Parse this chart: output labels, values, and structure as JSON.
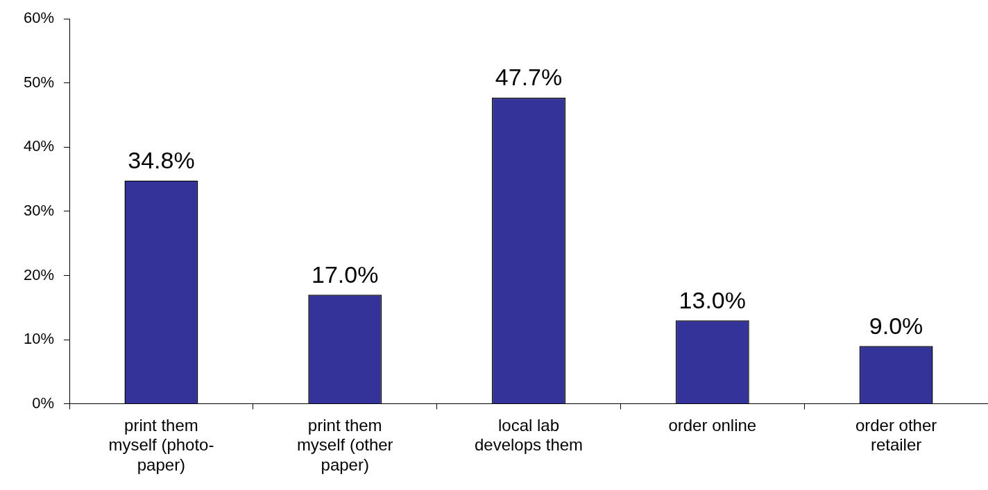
{
  "chart_data": {
    "type": "bar",
    "categories": [
      "print them myself (photo-paper)",
      "print them myself (other paper)",
      "local lab develops them",
      "order online",
      "order other retailer"
    ],
    "values": [
      34.8,
      17.0,
      47.7,
      13.0,
      9.0
    ],
    "value_labels": [
      "34.8%",
      "17.0%",
      "47.7%",
      "13.0%",
      "9.0%"
    ],
    "color": "#333399",
    "ylim": [
      0,
      60
    ],
    "yticks": [
      {
        "value": 0,
        "label": "0%"
      },
      {
        "value": 10,
        "label": "10%"
      },
      {
        "value": 20,
        "label": "20%"
      },
      {
        "value": 30,
        "label": "30%"
      },
      {
        "value": 40,
        "label": "40%"
      },
      {
        "value": 50,
        "label": "50%"
      },
      {
        "value": 60,
        "label": "60%"
      }
    ],
    "grid": false,
    "legend": false
  }
}
